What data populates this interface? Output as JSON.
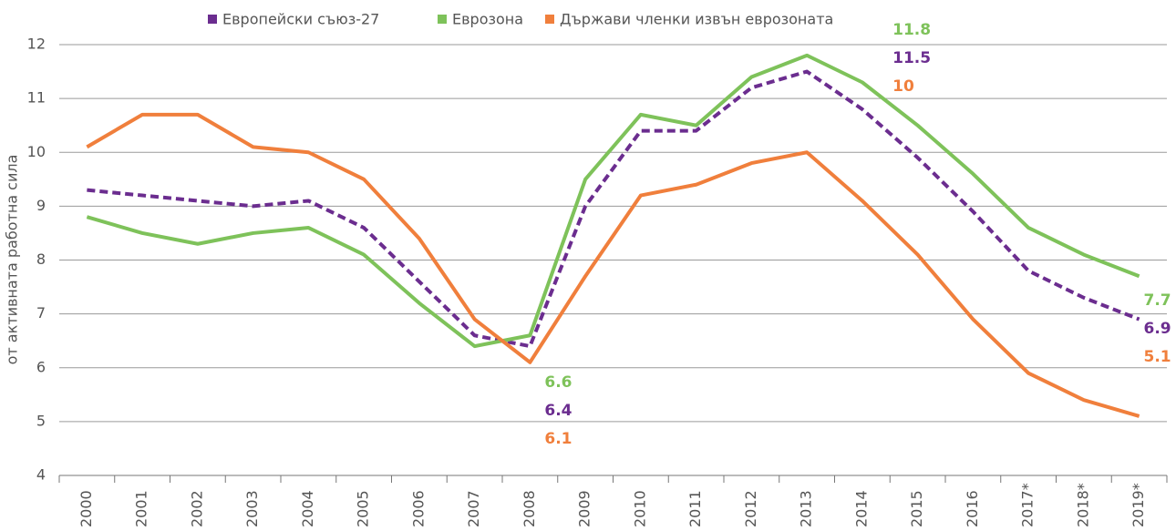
{
  "chart_data": {
    "type": "line",
    "y_label": "от активната работна сила",
    "categories": [
      "2000",
      "2001",
      "2002",
      "2003",
      "2004",
      "2005",
      "2006",
      "2007",
      "2008",
      "2009",
      "2010",
      "2011",
      "2012",
      "2013",
      "2014",
      "2015",
      "2016",
      "2017*",
      "2018*",
      "2019*"
    ],
    "series": [
      {
        "name": "Европейски съюз-27",
        "color": "#6b2d8f",
        "dashed": true,
        "values": [
          9.3,
          9.2,
          9.1,
          9.0,
          9.1,
          8.6,
          7.6,
          6.6,
          6.4,
          9.0,
          10.4,
          10.4,
          11.2,
          11.5,
          10.8,
          9.9,
          8.9,
          7.8,
          7.3,
          6.9
        ]
      },
      {
        "name": "Еврозона",
        "color": "#7ec25a",
        "dashed": false,
        "values": [
          8.8,
          8.5,
          8.3,
          8.5,
          8.6,
          8.1,
          7.2,
          6.4,
          6.6,
          9.5,
          10.7,
          10.5,
          11.4,
          11.8,
          11.3,
          10.5,
          9.6,
          8.6,
          8.1,
          7.7
        ]
      },
      {
        "name": "Държави членки извън еврозоната",
        "color": "#f07f3c",
        "dashed": false,
        "values": [
          10.1,
          10.7,
          10.7,
          10.1,
          10.0,
          9.5,
          8.4,
          6.9,
          6.1,
          7.7,
          9.2,
          9.4,
          9.8,
          10.0,
          9.1,
          8.1,
          6.9,
          5.9,
          5.4,
          5.1
        ]
      }
    ],
    "ylim": [
      4,
      12
    ],
    "yticks": [
      4,
      5,
      6,
      7,
      8,
      9,
      10,
      11,
      12
    ],
    "grid": true
  }
}
